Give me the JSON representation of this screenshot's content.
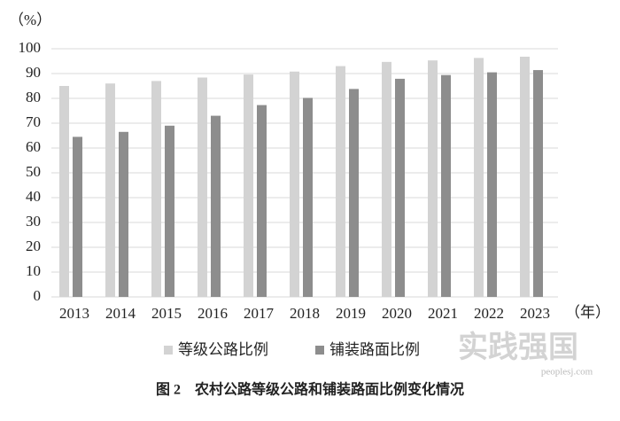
{
  "chart_data": {
    "type": "bar",
    "y_label": "（%）",
    "x_label": "（年）",
    "caption": "图 2　农村公路等级公路和铺装路面比例变化情况",
    "watermark": "实践强国",
    "watermark_url": "peoplesj.com",
    "categories": [
      "2013",
      "2014",
      "2015",
      "2016",
      "2017",
      "2018",
      "2019",
      "2020",
      "2021",
      "2022",
      "2023"
    ],
    "series": [
      {
        "name": "等级公路比例",
        "color": "#d3d3d3",
        "values": [
          85.0,
          86.0,
          87.0,
          88.4,
          89.6,
          90.8,
          93.0,
          94.7,
          95.3,
          96.3,
          96.8
        ]
      },
      {
        "name": "铺装路面比例",
        "color": "#8d8d8d",
        "values": [
          64.5,
          66.5,
          69.0,
          73.0,
          77.3,
          80.2,
          83.8,
          87.9,
          89.4,
          90.5,
          91.4
        ]
      }
    ],
    "ylim": [
      0,
      100
    ],
    "yticks": [
      0,
      10,
      20,
      30,
      40,
      50,
      60,
      70,
      80,
      90,
      100
    ],
    "grid": true,
    "legend": "bottom"
  }
}
